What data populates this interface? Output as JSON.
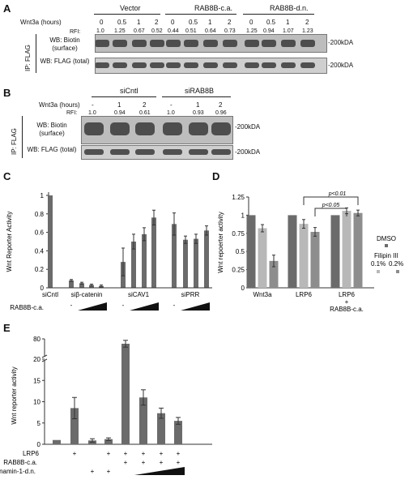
{
  "panelA": {
    "letter": "A",
    "time_label": "Wnt3a (hours)",
    "rfi_label": "RFI:",
    "groups": [
      "Vector",
      "RAB8B-c.a.",
      "RAB8B-d.n."
    ],
    "times": [
      "0",
      "0.5",
      "1",
      "2",
      "0",
      "0.5",
      "1",
      "2",
      "0",
      "0.5",
      "1",
      "2"
    ],
    "rfi": [
      "1.0",
      "1.25",
      "0.67",
      "0.52",
      "0.44",
      "0.51",
      "0.64",
      "0.73",
      "1.25",
      "0.94",
      "1.07",
      "1.23"
    ],
    "wb_biotin": "WB: Biotin (surface)",
    "wb_flag": "WB: FLAG (total)",
    "ip": "IP: FLAG",
    "mw1": "-200kDA",
    "mw2": "-200kDA"
  },
  "panelB": {
    "letter": "B",
    "time_label": "Wnt3a (hours)",
    "rfi_label": "RFI:",
    "groups": [
      "siCntl",
      "siRAB8B"
    ],
    "times": [
      "-",
      "1",
      "2",
      "-",
      "1",
      "2"
    ],
    "rfi": [
      "1.0",
      "0.94",
      "0.61",
      "1.0",
      "0.93",
      "0.96"
    ],
    "wb_biotin": "WB: Biotin (surface)",
    "wb_flag": "WB: FLAG (total)",
    "ip": "IP: FLAG",
    "mw1": "-200kDA",
    "mw2": "-200kDA"
  },
  "panelC": {
    "letter": "C",
    "chart_data": {
      "type": "bar",
      "ylabel": "Wnt Reporter Activity",
      "ylim": [
        0,
        1
      ],
      "yticks": [
        "0",
        "0.2",
        "0.4",
        "0.6",
        "0.8",
        "1"
      ],
      "groups": [
        "siCntl",
        "siβ-catenin",
        "siCAV1",
        "siPRR"
      ],
      "values": [
        1.0,
        0.08,
        0.05,
        0.03,
        0.02,
        0.28,
        0.5,
        0.58,
        0.76,
        0.69,
        0.52,
        0.53,
        0.62
      ],
      "errors": [
        0,
        0.01,
        0.01,
        0.01,
        0.01,
        0.15,
        0.08,
        0.07,
        0.08,
        0.12,
        0.04,
        0.05,
        0.05
      ],
      "treatment_label": "RAB8B-c.a.",
      "dash": "-"
    }
  },
  "panelD": {
    "letter": "D",
    "chart_data": {
      "type": "bar",
      "ylabel": "Wnt repoerter activity",
      "ylim": [
        0,
        1.25
      ],
      "yticks": [
        "0",
        "0.25",
        "0.5",
        "0.75",
        "1",
        "1.25"
      ],
      "categories": [
        "Wnt3a",
        "LRP6",
        "LRP6\n+\nRAB8B-c.a."
      ],
      "series": [
        {
          "name": "DMSO",
          "values": [
            1.0,
            1.0,
            1.0
          ],
          "errors": [
            0,
            0,
            0
          ],
          "color": "#6b6b6b"
        },
        {
          "name": "0.1%",
          "values": [
            0.82,
            0.88,
            1.06
          ],
          "errors": [
            0.05,
            0.06,
            0.04
          ],
          "color": "#b8b8b8"
        },
        {
          "name": "0.2%",
          "values": [
            0.37,
            0.77,
            1.03
          ],
          "errors": [
            0.08,
            0.06,
            0.04
          ],
          "color": "#8d8d8d"
        }
      ],
      "legend_title": "Filipin III",
      "annotations": [
        "p<0.01",
        "p<0.05"
      ]
    }
  },
  "panelE": {
    "letter": "E",
    "chart_data": {
      "type": "bar",
      "ylabel": "Wnt reporter activity",
      "yticks": [
        "0",
        "5",
        "10",
        "15",
        "20",
        "80"
      ],
      "values": [
        1.0,
        8.5,
        0.9,
        1.2,
        75,
        11,
        7.3,
        5.5
      ],
      "errors": [
        0,
        2.5,
        0.4,
        0.3,
        3.5,
        1.8,
        1.2,
        0.8
      ],
      "row_labels": [
        "LRP6",
        "RAB8B-c.a.",
        "Dynamin-1-d.n."
      ],
      "lrp6": [
        "",
        "+",
        "",
        "+",
        "+",
        "+",
        "+",
        "+"
      ],
      "rab8b": [
        "",
        "",
        "",
        "",
        "+",
        "+",
        "+",
        "+"
      ],
      "dyn": [
        "",
        "",
        "+",
        "+",
        "",
        "",
        "",
        ""
      ]
    }
  }
}
